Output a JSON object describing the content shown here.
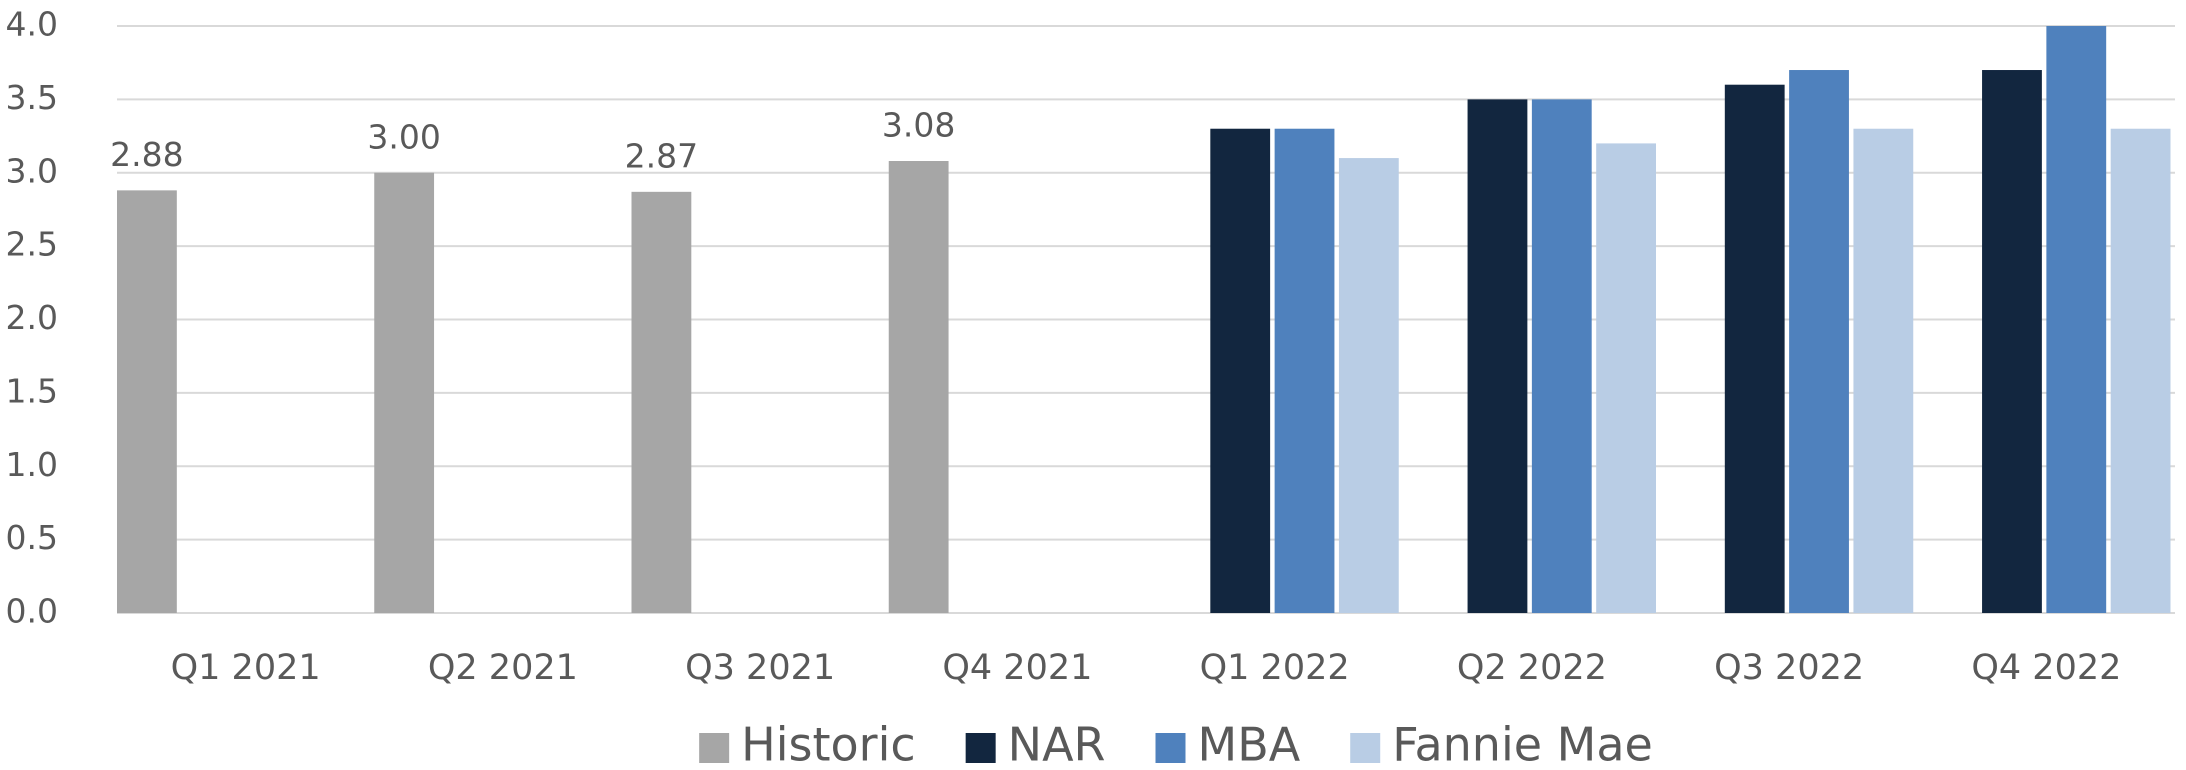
{
  "chart_data": {
    "type": "bar",
    "categories": [
      "Q1 2021",
      "Q2 2021",
      "Q3 2021",
      "Q4 2021",
      "Q1 2022",
      "Q2 2022",
      "Q3 2022",
      "Q4 2022"
    ],
    "series": [
      {
        "name": "Historic",
        "color": "#a6a6a6",
        "values": [
          2.88,
          3.0,
          2.87,
          3.08,
          null,
          null,
          null,
          null
        ],
        "value_labels": [
          "2.88",
          "3.00",
          "2.87",
          "3.08",
          null,
          null,
          null,
          null
        ]
      },
      {
        "name": "NAR",
        "color": "#12263f",
        "values": [
          null,
          null,
          null,
          null,
          3.3,
          3.5,
          3.6,
          3.7
        ]
      },
      {
        "name": "MBA",
        "color": "#4f81bd",
        "values": [
          null,
          null,
          null,
          null,
          3.3,
          3.5,
          3.7,
          4.0
        ]
      },
      {
        "name": "Fannie Mae",
        "color": "#b9cde5",
        "values": [
          null,
          null,
          null,
          null,
          3.1,
          3.2,
          3.3,
          3.3
        ]
      }
    ],
    "ylim": [
      0,
      4
    ],
    "yticks": [
      {
        "value": 0,
        "label": "0.0"
      },
      0.5,
      {
        "value": 1,
        "label": "1.0"
      },
      1.5,
      {
        "value": 2,
        "label": "2.0"
      },
      2.5,
      {
        "value": 3,
        "label": "3.0"
      },
      3.5,
      {
        "value": 4,
        "label": "4.0"
      }
    ],
    "grid": true,
    "legend": "bottom"
  }
}
